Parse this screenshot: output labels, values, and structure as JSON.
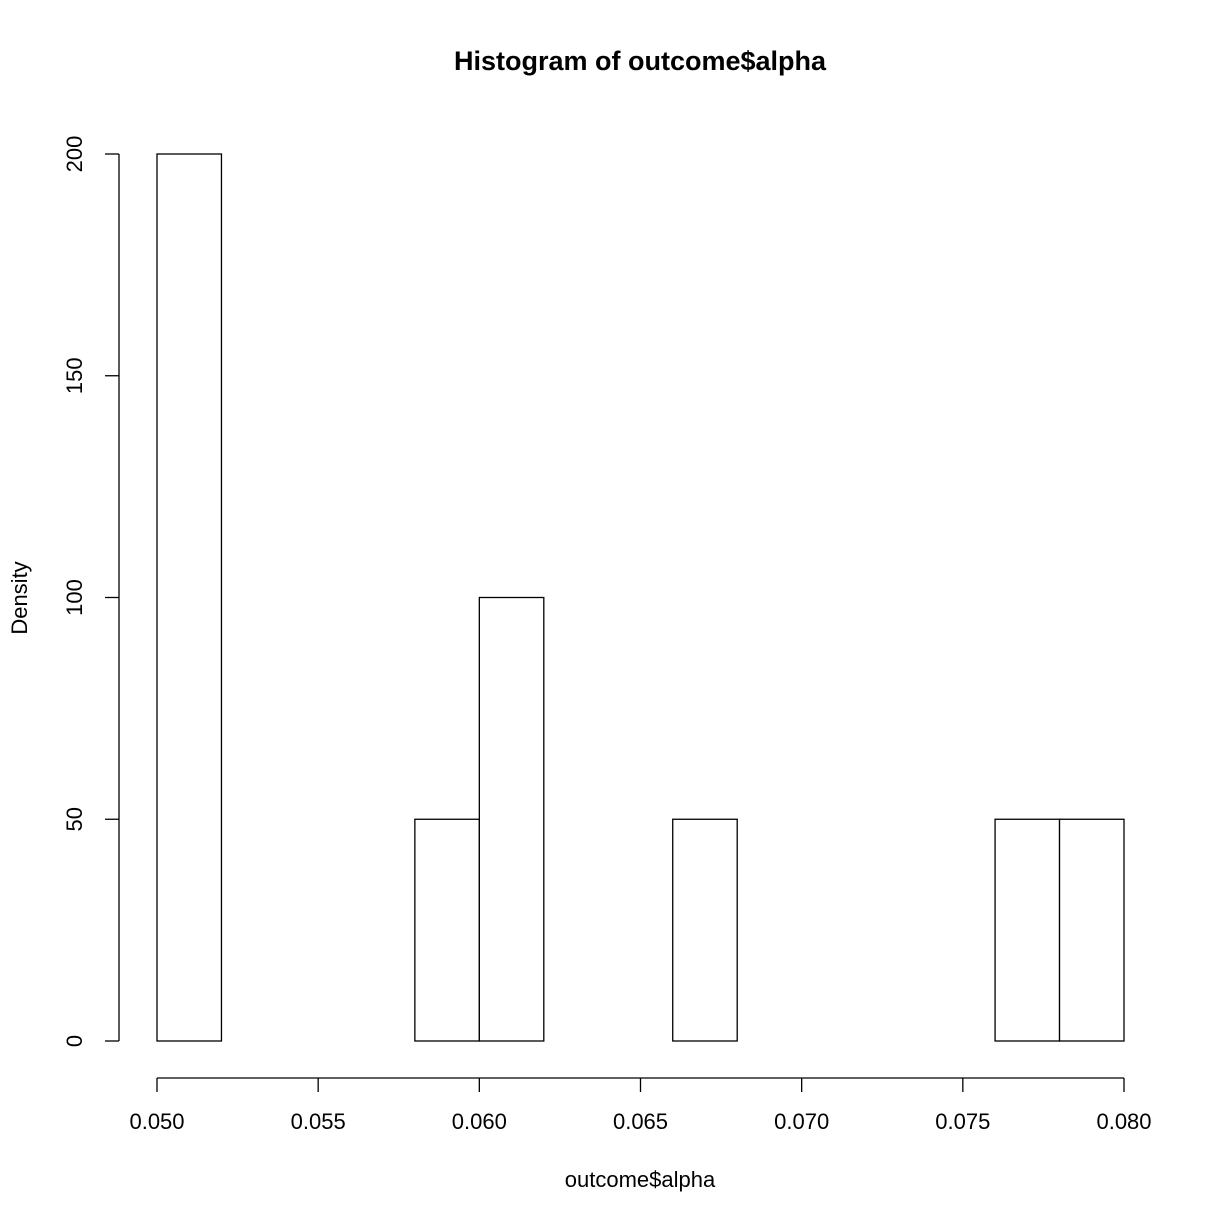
{
  "chart_data": {
    "type": "bar",
    "histogram": true,
    "title": "Histogram of outcome$alpha",
    "xlabel": "outcome$alpha",
    "ylabel": "Density",
    "bin_width": 0.002,
    "bins": [
      {
        "start": 0.05,
        "end": 0.052,
        "density": 200
      },
      {
        "start": 0.052,
        "end": 0.054,
        "density": 0
      },
      {
        "start": 0.054,
        "end": 0.056,
        "density": 0
      },
      {
        "start": 0.056,
        "end": 0.058,
        "density": 0
      },
      {
        "start": 0.058,
        "end": 0.06,
        "density": 50
      },
      {
        "start": 0.06,
        "end": 0.062,
        "density": 100
      },
      {
        "start": 0.062,
        "end": 0.064,
        "density": 0
      },
      {
        "start": 0.064,
        "end": 0.066,
        "density": 0
      },
      {
        "start": 0.066,
        "end": 0.068,
        "density": 50
      },
      {
        "start": 0.068,
        "end": 0.07,
        "density": 0
      },
      {
        "start": 0.07,
        "end": 0.072,
        "density": 0
      },
      {
        "start": 0.072,
        "end": 0.074,
        "density": 0
      },
      {
        "start": 0.074,
        "end": 0.076,
        "density": 0
      },
      {
        "start": 0.076,
        "end": 0.078,
        "density": 50
      },
      {
        "start": 0.078,
        "end": 0.08,
        "density": 50
      }
    ],
    "xlim": [
      0.05,
      0.08
    ],
    "ylim": [
      0,
      200
    ],
    "x_ticks": [
      0.05,
      0.055,
      0.06,
      0.065,
      0.07,
      0.075,
      0.08
    ],
    "x_tick_labels": [
      "0.050",
      "0.055",
      "0.060",
      "0.065",
      "0.070",
      "0.075",
      "0.080"
    ],
    "y_ticks": [
      0,
      50,
      100,
      150,
      200
    ],
    "y_tick_labels": [
      "0",
      "50",
      "100",
      "150",
      "200"
    ],
    "grid": false
  }
}
